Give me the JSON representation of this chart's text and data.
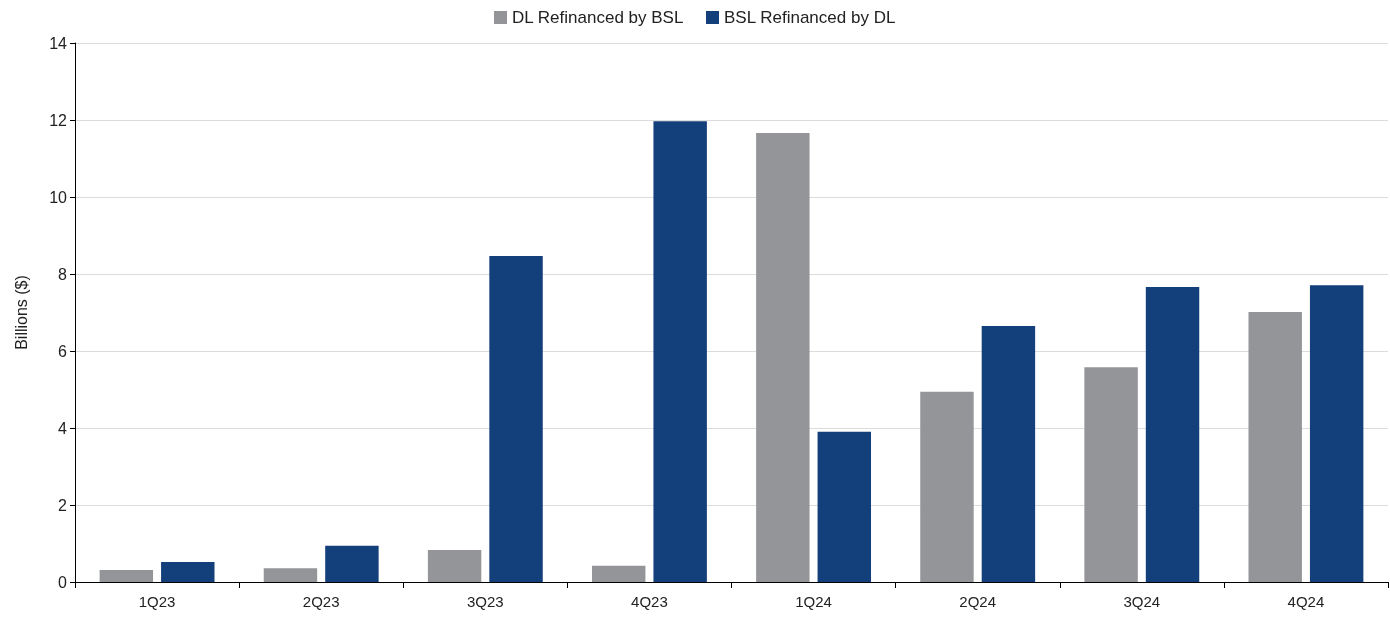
{
  "chart_data": {
    "type": "bar",
    "ylabel": "Billions ($)",
    "categories": [
      "1Q23",
      "2Q23",
      "3Q23",
      "4Q23",
      "1Q24",
      "2Q24",
      "3Q24",
      "4Q24"
    ],
    "series": [
      {
        "name": "DL Refinanced by BSL",
        "color": "#939598",
        "values": [
          0.31,
          0.36,
          0.83,
          0.42,
          11.66,
          4.94,
          5.58,
          7.01
        ]
      },
      {
        "name": "BSL Refinanced by DL",
        "color": "#133f7a",
        "values": [
          0.52,
          0.94,
          8.47,
          11.97,
          3.9,
          6.65,
          7.66,
          7.71
        ]
      }
    ],
    "ylim": [
      0,
      14
    ],
    "yticks": [
      0,
      2,
      4,
      6,
      8,
      10,
      12,
      14
    ],
    "grid": "y",
    "legend": "top"
  }
}
